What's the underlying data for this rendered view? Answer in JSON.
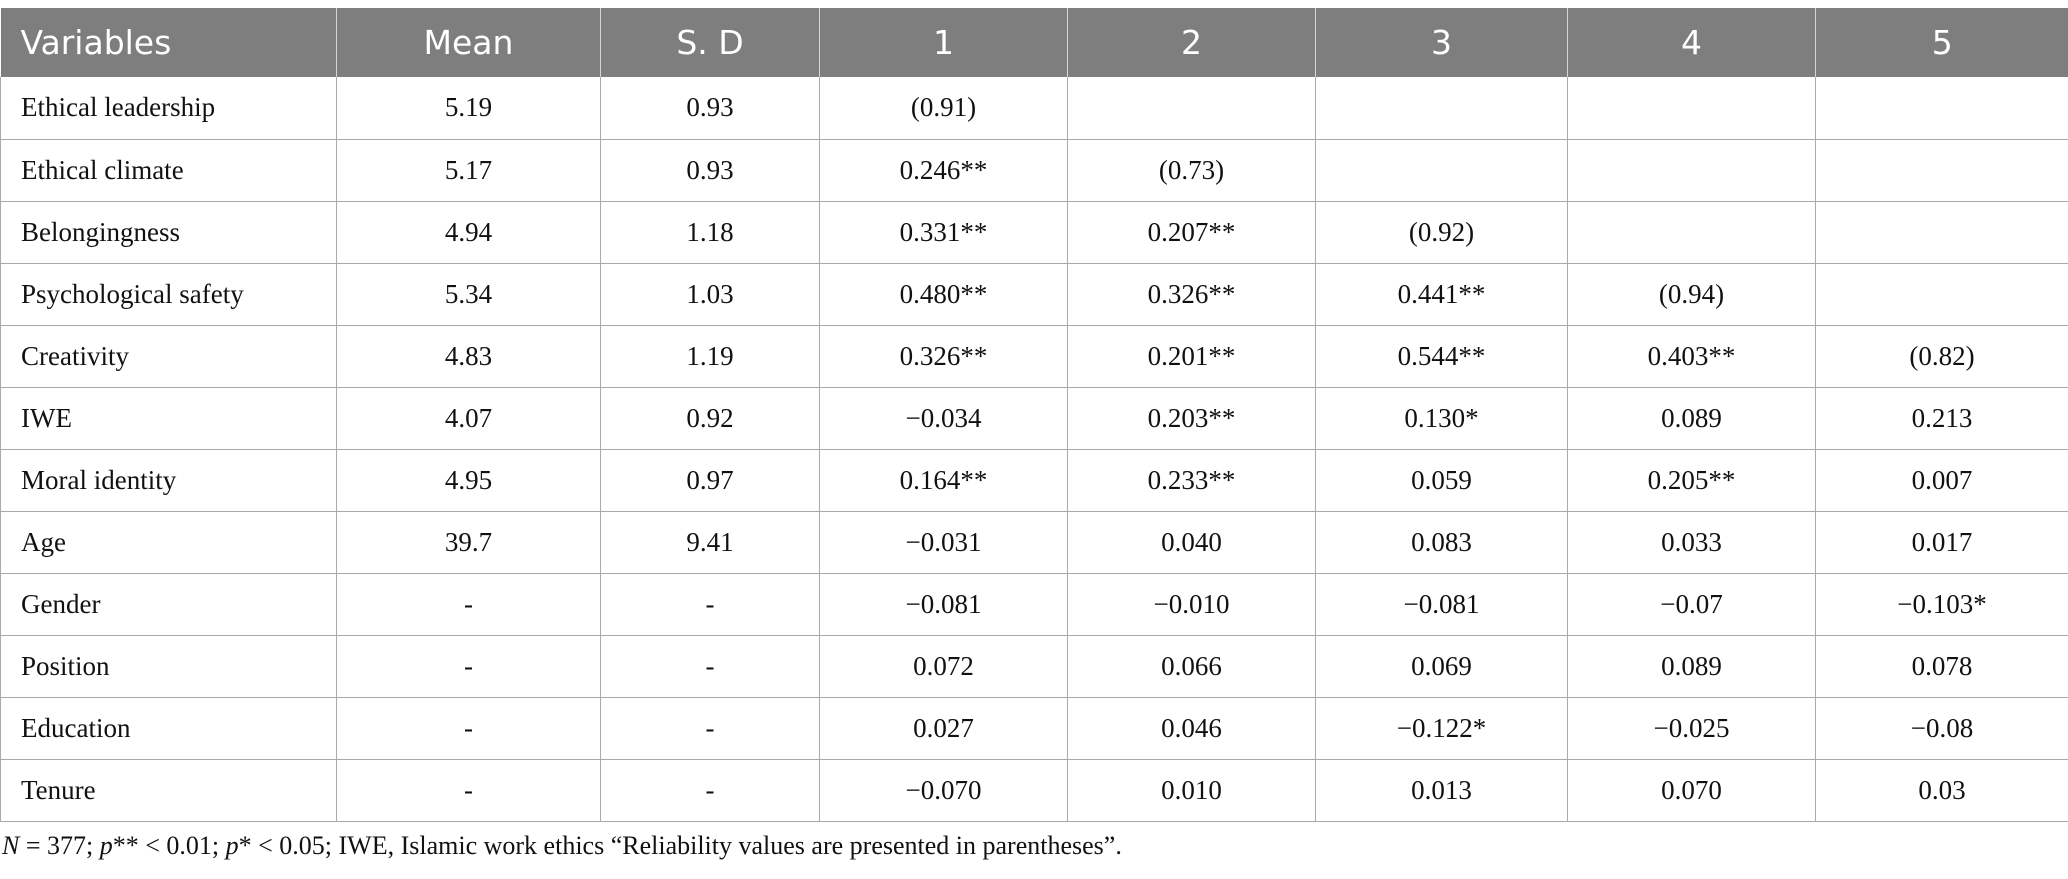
{
  "table": {
    "headers": [
      "Variables",
      "Mean",
      "S. D",
      "1",
      "2",
      "3",
      "4",
      "5"
    ],
    "rows": [
      [
        "Ethical leadership",
        "5.19",
        "0.93",
        "(0.91)",
        "",
        "",
        "",
        ""
      ],
      [
        "Ethical climate",
        "5.17",
        "0.93",
        "0.246**",
        "(0.73)",
        "",
        "",
        ""
      ],
      [
        "Belongingness",
        "4.94",
        "1.18",
        "0.331**",
        "0.207**",
        "(0.92)",
        "",
        ""
      ],
      [
        "Psychological safety",
        "5.34",
        "1.03",
        "0.480**",
        "0.326**",
        "0.441**",
        "(0.94)",
        ""
      ],
      [
        "Creativity",
        "4.83",
        "1.19",
        "0.326**",
        "0.201**",
        "0.544**",
        "0.403**",
        "(0.82)"
      ],
      [
        "IWE",
        "4.07",
        "0.92",
        "−0.034",
        "0.203**",
        "0.130*",
        "0.089",
        "0.213"
      ],
      [
        "Moral identity",
        "4.95",
        "0.97",
        "0.164**",
        "0.233**",
        "0.059",
        "0.205**",
        "0.007"
      ],
      [
        "Age",
        "39.7",
        "9.41",
        "−0.031",
        "0.040",
        "0.083",
        "0.033",
        "0.017"
      ],
      [
        "Gender",
        "-",
        "-",
        "−0.081",
        "−0.010",
        "−0.081",
        "−0.07",
        "−0.103*"
      ],
      [
        "Position",
        "-",
        "-",
        "0.072",
        "0.066",
        "0.069",
        "0.089",
        "0.078"
      ],
      [
        "Education",
        "-",
        "-",
        "0.027",
        "0.046",
        "−0.122*",
        "−0.025",
        "−0.08"
      ],
      [
        "Tenure",
        "-",
        "-",
        "−0.070",
        "0.010",
        "0.013",
        "0.070",
        "0.03"
      ]
    ]
  },
  "note": {
    "n_label": "N",
    "n_text": " = 377; ",
    "p1_label": "p",
    "p1_text": "** < 0.01; ",
    "p2_label": "p",
    "p2_text": "* < 0.05; IWE, Islamic work ethics “Reliability values are presented in parentheses”."
  }
}
